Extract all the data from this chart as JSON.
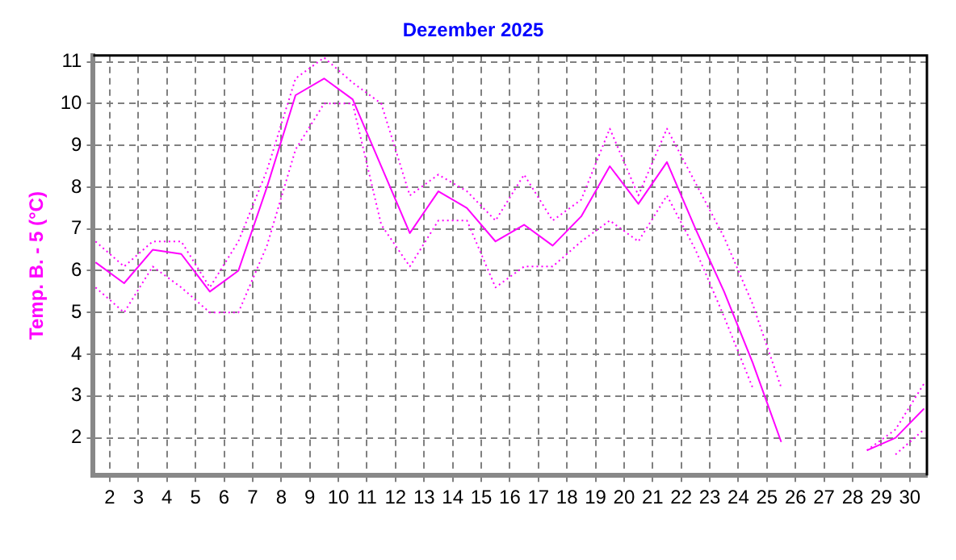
{
  "chart_data": {
    "type": "line",
    "title": "Dezember 2025",
    "ylabel": "Temp. B. - 5 (°C)",
    "x": [
      1.5,
      2.5,
      3.5,
      4.5,
      5.5,
      6.5,
      7.5,
      8.5,
      9.5,
      10.5,
      11.5,
      12.5,
      13.5,
      14.5,
      15.5,
      16.5,
      17.5,
      18.5,
      19.5,
      20.5,
      21.5,
      22.5,
      23.5,
      24.5,
      25.5,
      26.5,
      27.5,
      28.5,
      29.5,
      30.5
    ],
    "series": [
      {
        "color": "#ff00ff",
        "line_style": "dotted",
        "values": [
          6.7,
          6.1,
          6.7,
          6.7,
          5.6,
          6.7,
          8.4,
          10.6,
          11.1,
          10.5,
          10.0,
          7.8,
          8.3,
          7.9,
          7.2,
          8.3,
          7.2,
          7.7,
          9.4,
          7.8,
          9.4,
          8.1,
          6.8,
          5.2,
          3.2,
          null,
          null,
          1.7,
          2.2,
          3.3
        ]
      },
      {
        "color": "#ff00ff",
        "line_style": "solid",
        "values": [
          6.2,
          5.7,
          6.5,
          6.4,
          5.5,
          6.0,
          8.0,
          10.2,
          10.6,
          10.1,
          8.5,
          6.9,
          7.9,
          7.5,
          6.7,
          7.1,
          6.6,
          7.3,
          8.5,
          7.6,
          8.6,
          7.0,
          5.5,
          3.8,
          1.9,
          null,
          null,
          1.7,
          2.0,
          2.7
        ]
      },
      {
        "color": "#ff00ff",
        "line_style": "dotted",
        "values": [
          5.6,
          5.0,
          6.1,
          5.6,
          5.0,
          5.0,
          6.6,
          8.9,
          10.0,
          10.0,
          7.1,
          6.1,
          7.2,
          7.2,
          5.6,
          6.1,
          6.1,
          6.7,
          7.2,
          6.7,
          7.8,
          6.5,
          4.9,
          3.2,
          null,
          null,
          null,
          null,
          1.6,
          2.2
        ]
      }
    ],
    "xlim": [
      1.42,
      30.6
    ],
    "xticks": [
      2,
      3,
      4,
      5,
      6,
      7,
      8,
      9,
      10,
      11,
      12,
      13,
      14,
      15,
      16,
      17,
      18,
      19,
      20,
      21,
      22,
      23,
      24,
      25,
      26,
      27,
      28,
      29,
      30
    ],
    "ylim": [
      1.1,
      11.15
    ],
    "yticks": [
      2,
      3,
      4,
      5,
      6,
      7,
      8,
      9,
      10,
      11
    ],
    "grid": true,
    "marker": "none"
  }
}
